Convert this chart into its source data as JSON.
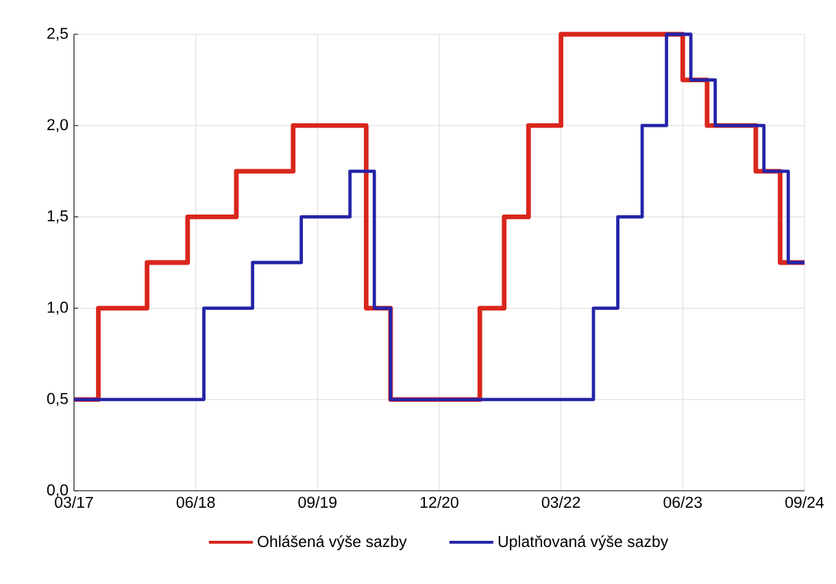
{
  "chart_data": {
    "type": "step",
    "grid": true,
    "legend": "bottom",
    "line_style": "solid",
    "marker": "none",
    "xlim": [
      "2017-03",
      "2024-09"
    ],
    "xticks": [
      {
        "value": "2017-03",
        "label": "03/17"
      },
      {
        "value": "2018-06",
        "label": "06/18"
      },
      {
        "value": "2019-09",
        "label": "09/19"
      },
      {
        "value": "2020-12",
        "label": "12/20"
      },
      {
        "value": "2022-03",
        "label": "03/22"
      },
      {
        "value": "2023-06",
        "label": "06/23"
      },
      {
        "value": "2024-09",
        "label": "09/24"
      }
    ],
    "ylim": [
      0,
      2.5
    ],
    "yticks": [
      {
        "value": 0,
        "label": "0,0"
      },
      {
        "value": 0.5,
        "label": "0,5"
      },
      {
        "value": 1,
        "label": "1,0"
      },
      {
        "value": 1.5,
        "label": "1,5"
      },
      {
        "value": 2,
        "label": "2,0"
      },
      {
        "value": 2.5,
        "label": "2,5"
      }
    ],
    "series": [
      {
        "name": "Ohlášená výše sazby",
        "color": "#d9261c",
        "x": [
          "2017-03",
          "2017-06",
          "2017-12",
          "2018-05",
          "2018-11",
          "2019-06",
          "2020-03",
          "2020-06",
          "2021-05",
          "2021-08",
          "2021-11",
          "2022-03",
          "2023-06",
          "2023-09",
          "2024-03",
          "2024-06",
          "2024-09"
        ],
        "values": [
          0.5,
          1.0,
          1.25,
          1.5,
          1.75,
          2.0,
          1.0,
          0.5,
          1.0,
          1.5,
          2.0,
          2.5,
          2.25,
          2.0,
          1.75,
          1.25,
          1.25
        ]
      },
      {
        "name": "Uplatňovaná výše sazby",
        "color": "#2424a8",
        "x": [
          "2017-03",
          "2018-07",
          "2019-01",
          "2019-07",
          "2020-01",
          "2020-04",
          "2020-06",
          "2022-07",
          "2022-10",
          "2023-01",
          "2023-04",
          "2023-07",
          "2023-10",
          "2024-04",
          "2024-07",
          "2024-09"
        ],
        "values": [
          0.5,
          1.0,
          1.25,
          1.5,
          1.75,
          1.0,
          0.5,
          1.0,
          1.5,
          2.0,
          2.5,
          2.25,
          2.0,
          1.75,
          1.25,
          1.25
        ]
      }
    ]
  }
}
